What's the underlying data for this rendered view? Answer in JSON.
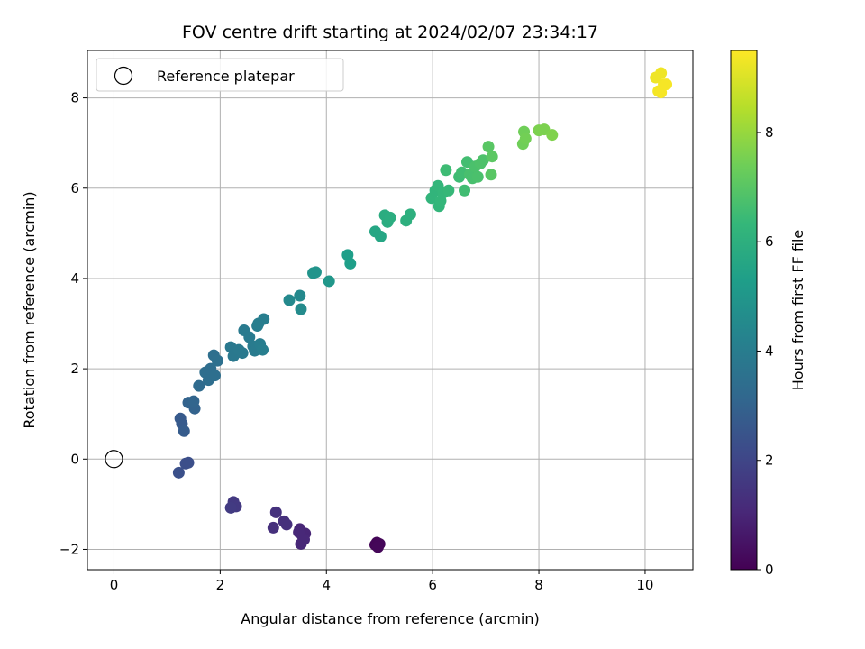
{
  "chart_data": {
    "type": "scatter",
    "title": "FOV centre drift starting at 2024/02/07 23:34:17",
    "xlabel": "Angular distance from reference (arcmin)",
    "ylabel": "Rotation from reference (arcmin)",
    "xlim": [
      -0.5,
      10.9
    ],
    "ylim": [
      -2.45,
      9.05
    ],
    "xticks": [
      0,
      2,
      4,
      6,
      8,
      10
    ],
    "yticks": [
      -2,
      0,
      2,
      4,
      6,
      8
    ],
    "grid": true,
    "legend": {
      "placement": "upper-left",
      "label": "Reference platepar",
      "marker": "open-circle"
    },
    "reference_point": {
      "x": 0,
      "y": 0
    },
    "colorbar": {
      "label": "Hours from first FF file",
      "colormap": "viridis",
      "range": [
        0,
        9.5
      ],
      "ticks": [
        0,
        2,
        4,
        6,
        8
      ]
    },
    "series": [
      {
        "points": [
          {
            "x": 4.95,
            "y": -1.85,
            "c": 0.1
          },
          {
            "x": 4.92,
            "y": -1.9,
            "c": 0.1
          },
          {
            "x": 5.0,
            "y": -1.88,
            "c": 0.15
          },
          {
            "x": 4.97,
            "y": -1.95,
            "c": 0.15
          },
          {
            "x": 3.5,
            "y": -1.55,
            "c": 1.0
          },
          {
            "x": 3.55,
            "y": -1.7,
            "c": 1.0
          },
          {
            "x": 3.6,
            "y": -1.65,
            "c": 1.0
          },
          {
            "x": 3.52,
            "y": -1.88,
            "c": 1.05
          },
          {
            "x": 3.58,
            "y": -1.78,
            "c": 1.05
          },
          {
            "x": 3.48,
            "y": -1.62,
            "c": 1.05
          },
          {
            "x": 3.0,
            "y": -1.52,
            "c": 1.3
          },
          {
            "x": 3.2,
            "y": -1.38,
            "c": 1.3
          },
          {
            "x": 3.25,
            "y": -1.45,
            "c": 1.3
          },
          {
            "x": 3.05,
            "y": -1.18,
            "c": 1.35
          },
          {
            "x": 2.25,
            "y": -0.95,
            "c": 1.6
          },
          {
            "x": 2.3,
            "y": -1.05,
            "c": 1.6
          },
          {
            "x": 2.2,
            "y": -1.08,
            "c": 1.65
          },
          {
            "x": 1.35,
            "y": -0.1,
            "c": 2.3
          },
          {
            "x": 1.4,
            "y": -0.08,
            "c": 2.3
          },
          {
            "x": 1.22,
            "y": -0.3,
            "c": 2.35
          },
          {
            "x": 1.25,
            "y": 0.9,
            "c": 2.7
          },
          {
            "x": 1.28,
            "y": 0.78,
            "c": 2.7
          },
          {
            "x": 1.32,
            "y": 0.62,
            "c": 2.75
          },
          {
            "x": 1.4,
            "y": 1.25,
            "c": 3.0
          },
          {
            "x": 1.48,
            "y": 1.22,
            "c": 3.0
          },
          {
            "x": 1.52,
            "y": 1.12,
            "c": 3.0
          },
          {
            "x": 1.5,
            "y": 1.28,
            "c": 3.05
          },
          {
            "x": 1.6,
            "y": 1.62,
            "c": 3.3
          },
          {
            "x": 1.72,
            "y": 1.92,
            "c": 3.4
          },
          {
            "x": 1.78,
            "y": 1.75,
            "c": 3.4
          },
          {
            "x": 1.82,
            "y": 2.0,
            "c": 3.4
          },
          {
            "x": 1.9,
            "y": 1.85,
            "c": 3.45
          },
          {
            "x": 1.88,
            "y": 2.3,
            "c": 3.45
          },
          {
            "x": 1.95,
            "y": 2.18,
            "c": 3.5
          },
          {
            "x": 2.2,
            "y": 2.48,
            "c": 3.8
          },
          {
            "x": 2.25,
            "y": 2.28,
            "c": 3.8
          },
          {
            "x": 2.35,
            "y": 2.42,
            "c": 3.85
          },
          {
            "x": 2.42,
            "y": 2.35,
            "c": 3.85
          },
          {
            "x": 2.45,
            "y": 2.85,
            "c": 3.9
          },
          {
            "x": 2.55,
            "y": 2.7,
            "c": 3.9
          },
          {
            "x": 2.62,
            "y": 2.5,
            "c": 3.95
          },
          {
            "x": 2.65,
            "y": 2.4,
            "c": 3.95
          },
          {
            "x": 2.7,
            "y": 2.95,
            "c": 4.0
          },
          {
            "x": 2.75,
            "y": 2.55,
            "c": 4.0
          },
          {
            "x": 2.8,
            "y": 2.42,
            "c": 4.05
          },
          {
            "x": 2.82,
            "y": 3.1,
            "c": 4.05
          },
          {
            "x": 2.72,
            "y": 3.0,
            "c": 4.05
          },
          {
            "x": 3.3,
            "y": 3.52,
            "c": 4.5
          },
          {
            "x": 3.5,
            "y": 3.62,
            "c": 4.5
          },
          {
            "x": 3.52,
            "y": 3.32,
            "c": 4.55
          },
          {
            "x": 3.75,
            "y": 4.12,
            "c": 4.9
          },
          {
            "x": 3.8,
            "y": 4.14,
            "c": 4.9
          },
          {
            "x": 4.05,
            "y": 3.94,
            "c": 5.0
          },
          {
            "x": 4.4,
            "y": 4.52,
            "c": 5.3
          },
          {
            "x": 4.45,
            "y": 4.33,
            "c": 5.3
          },
          {
            "x": 4.92,
            "y": 5.04,
            "c": 5.6
          },
          {
            "x": 5.02,
            "y": 4.93,
            "c": 5.6
          },
          {
            "x": 5.1,
            "y": 5.4,
            "c": 5.85
          },
          {
            "x": 5.15,
            "y": 5.25,
            "c": 5.85
          },
          {
            "x": 5.2,
            "y": 5.35,
            "c": 5.9
          },
          {
            "x": 5.5,
            "y": 5.28,
            "c": 6.0
          },
          {
            "x": 5.58,
            "y": 5.42,
            "c": 6.0
          },
          {
            "x": 5.98,
            "y": 5.78,
            "c": 6.2
          },
          {
            "x": 6.05,
            "y": 5.95,
            "c": 6.2
          },
          {
            "x": 6.1,
            "y": 6.05,
            "c": 6.25
          },
          {
            "x": 6.12,
            "y": 5.6,
            "c": 6.25
          },
          {
            "x": 6.15,
            "y": 5.72,
            "c": 6.3
          },
          {
            "x": 6.2,
            "y": 5.9,
            "c": 6.3
          },
          {
            "x": 6.3,
            "y": 5.95,
            "c": 6.35
          },
          {
            "x": 6.25,
            "y": 6.4,
            "c": 6.5
          },
          {
            "x": 6.5,
            "y": 6.25,
            "c": 6.5
          },
          {
            "x": 6.55,
            "y": 6.35,
            "c": 6.55
          },
          {
            "x": 6.6,
            "y": 5.95,
            "c": 6.55
          },
          {
            "x": 6.65,
            "y": 6.58,
            "c": 6.6
          },
          {
            "x": 6.7,
            "y": 6.3,
            "c": 6.7
          },
          {
            "x": 6.75,
            "y": 6.22,
            "c": 6.7
          },
          {
            "x": 6.8,
            "y": 6.48,
            "c": 6.75
          },
          {
            "x": 6.85,
            "y": 6.25,
            "c": 6.75
          },
          {
            "x": 6.9,
            "y": 6.55,
            "c": 6.8
          },
          {
            "x": 6.95,
            "y": 6.62,
            "c": 6.8
          },
          {
            "x": 7.05,
            "y": 6.92,
            "c": 7.0
          },
          {
            "x": 7.1,
            "y": 6.3,
            "c": 7.0
          },
          {
            "x": 7.12,
            "y": 6.7,
            "c": 7.05
          },
          {
            "x": 7.7,
            "y": 6.98,
            "c": 7.4
          },
          {
            "x": 7.72,
            "y": 7.25,
            "c": 7.4
          },
          {
            "x": 7.75,
            "y": 7.1,
            "c": 7.45
          },
          {
            "x": 8.0,
            "y": 7.28,
            "c": 7.6
          },
          {
            "x": 8.1,
            "y": 7.3,
            "c": 7.6
          },
          {
            "x": 8.25,
            "y": 7.18,
            "c": 7.65
          },
          {
            "x": 10.2,
            "y": 8.45,
            "c": 9.3
          },
          {
            "x": 10.3,
            "y": 8.55,
            "c": 9.3
          },
          {
            "x": 10.35,
            "y": 8.3,
            "c": 9.35
          },
          {
            "x": 10.25,
            "y": 8.15,
            "c": 9.35
          },
          {
            "x": 10.3,
            "y": 8.12,
            "c": 9.4
          },
          {
            "x": 10.4,
            "y": 8.3,
            "c": 9.4
          }
        ]
      }
    ]
  }
}
